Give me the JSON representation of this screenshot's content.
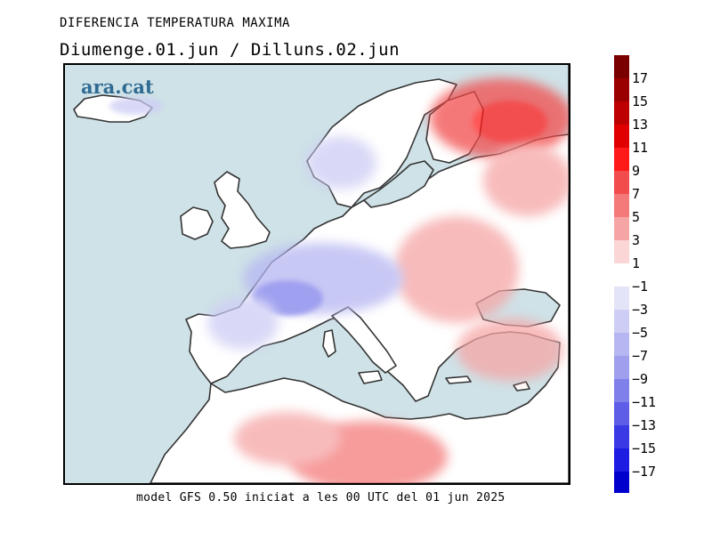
{
  "title": "DIFERENCIA TEMPERATURA MAXIMA",
  "subtitle": "Diumenge.01.jun / Dilluns.02.jun",
  "logo": "ara.cat",
  "footer": "model GFS 0.50 iniciat a les 00 UTC del 01 jun 2025",
  "legend": {
    "positive_labels": [
      "17",
      "15",
      "13",
      "11",
      "9",
      "7",
      "5",
      "3",
      "1"
    ],
    "negative_labels": [
      "−1",
      "−3",
      "−5",
      "−7",
      "−9",
      "−11",
      "−13",
      "−15",
      "−17"
    ],
    "positive_colors": [
      "#7a0000",
      "#9a0000",
      "#bd0000",
      "#e00000",
      "#ff1a1a",
      "#f24c4c",
      "#f47a7a",
      "#f6a5a5",
      "#fad6d6"
    ],
    "negative_colors": [
      "#e4e4f8",
      "#cdcdf5",
      "#b6b6f2",
      "#9f9fee",
      "#8080eb",
      "#5d5de8",
      "#3a3ae4",
      "#1c1ce2",
      "#0000cc"
    ]
  },
  "map_colors": {
    "sea": "#cfe2e7",
    "land": "#ffffff",
    "coast": "#333333"
  }
}
